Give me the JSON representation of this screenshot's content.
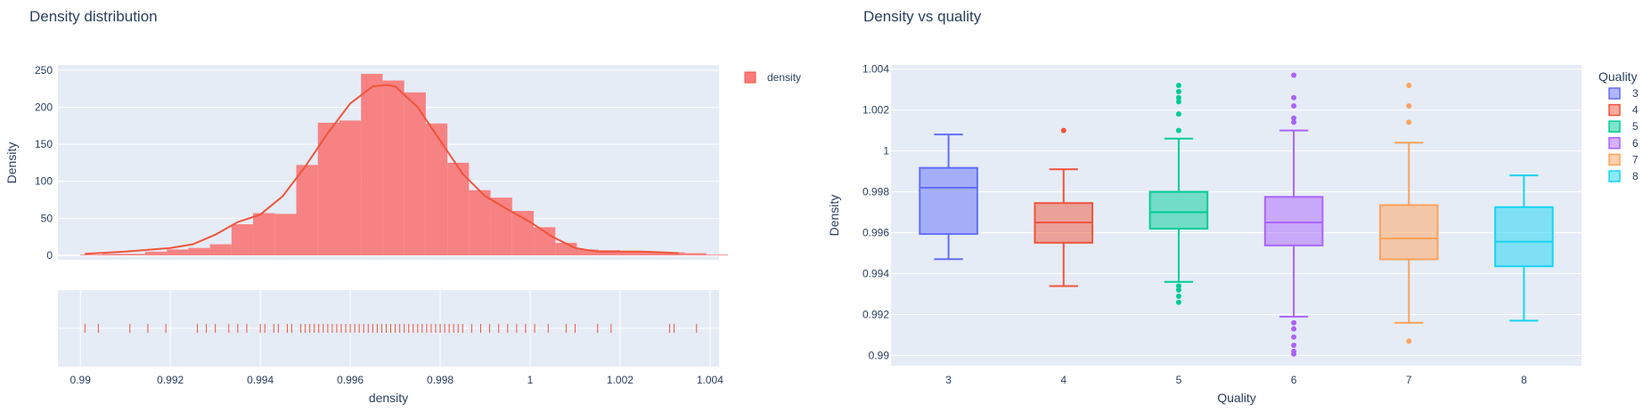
{
  "chart_data": [
    {
      "type": "bar",
      "title": "Density distribution",
      "xlabel": "density",
      "ylabel": "Density",
      "xlim": [
        0.9895,
        1.0042
      ],
      "ylim": [
        -6,
        257
      ],
      "bin_width": 0.00048,
      "bin_start": 0.99,
      "values": [
        1,
        2,
        2,
        5,
        8,
        10,
        15,
        42,
        57,
        56,
        122,
        179,
        182,
        245,
        236,
        220,
        178,
        125,
        88,
        78,
        60,
        38,
        17,
        8,
        7,
        6,
        5,
        4,
        3,
        1
      ],
      "xticks": [
        {
          "v": 0.99,
          "label": "0.99"
        },
        {
          "v": 0.992,
          "label": "0.992"
        },
        {
          "v": 0.994,
          "label": "0.994"
        },
        {
          "v": 0.996,
          "label": "0.996"
        },
        {
          "v": 0.998,
          "label": "0.998"
        },
        {
          "v": 1.0,
          "label": "1"
        },
        {
          "v": 1.002,
          "label": "1.002"
        },
        {
          "v": 1.004,
          "label": "1.004"
        }
      ],
      "yticks": [
        {
          "v": 0,
          "label": "0"
        },
        {
          "v": 50,
          "label": "50"
        },
        {
          "v": 100,
          "label": "100"
        },
        {
          "v": 150,
          "label": "150"
        },
        {
          "v": 200,
          "label": "200"
        },
        {
          "v": 250,
          "label": "250"
        }
      ],
      "kde": {
        "x": [
          0.9901,
          0.991,
          0.992,
          0.9925,
          0.993,
          0.9935,
          0.994,
          0.9945,
          0.995,
          0.9955,
          0.996,
          0.9965,
          0.9968,
          0.997,
          0.9975,
          0.998,
          0.9985,
          0.999,
          0.9995,
          1.0,
          1.0005,
          1.001,
          1.0015,
          1.002,
          1.0025,
          1.003,
          1.0033
        ],
        "y": [
          2,
          5,
          10,
          15,
          28,
          45,
          55,
          80,
          120,
          165,
          205,
          228,
          230,
          228,
          200,
          155,
          110,
          80,
          62,
          45,
          25,
          10,
          5,
          5,
          5,
          4,
          3
        ]
      },
      "rug": [
        0.9901,
        0.9904,
        0.9911,
        0.9915,
        0.9919,
        0.9926,
        0.9928,
        0.993,
        0.9933,
        0.9935,
        0.9937,
        0.994,
        0.9941,
        0.9943,
        0.9944,
        0.9946,
        0.9947,
        0.9949,
        0.995,
        0.9951,
        0.9952,
        0.9953,
        0.9954,
        0.9955,
        0.9956,
        0.9957,
        0.9958,
        0.9959,
        0.996,
        0.9961,
        0.9962,
        0.9963,
        0.9964,
        0.9965,
        0.9966,
        0.9967,
        0.9968,
        0.9969,
        0.997,
        0.9971,
        0.9972,
        0.9973,
        0.9974,
        0.9975,
        0.9976,
        0.9977,
        0.9978,
        0.9979,
        0.998,
        0.9981,
        0.9982,
        0.9983,
        0.9984,
        0.9985,
        0.9987,
        0.9989,
        0.9991,
        0.9993,
        0.9995,
        0.9997,
        0.9999,
        1.0001,
        1.0004,
        1.0008,
        1.001,
        1.0015,
        1.0018,
        1.0031,
        1.0032,
        1.0037
      ],
      "legend": [
        {
          "name": "density",
          "color": "#ef553b"
        }
      ],
      "color": "#f87c7c",
      "line_color": "#ef553b"
    },
    {
      "type": "box",
      "title": "Density vs quality",
      "xlabel": "Quality",
      "ylabel": "Density",
      "legend_title": "Quality",
      "ylim": [
        0.9895,
        1.0042
      ],
      "yticks": [
        {
          "v": 0.99,
          "label": "0.99"
        },
        {
          "v": 0.992,
          "label": "0.992"
        },
        {
          "v": 0.994,
          "label": "0.994"
        },
        {
          "v": 0.996,
          "label": "0.996"
        },
        {
          "v": 0.998,
          "label": "0.998"
        },
        {
          "v": 1.0,
          "label": "1"
        },
        {
          "v": 1.002,
          "label": "1.002"
        },
        {
          "v": 1.004,
          "label": "1.004"
        }
      ],
      "series": [
        {
          "name": "3",
          "color": "#636efa",
          "fill": "rgba(99,110,250,0.5)",
          "min": 0.99471,
          "q1": 0.99594,
          "median": 0.9982,
          "q3": 0.99917,
          "max": 1.0008,
          "outliers": []
        },
        {
          "name": "4",
          "color": "#ef553b",
          "fill": "rgba(239,85,59,0.5)",
          "min": 0.99339,
          "q1": 0.99551,
          "median": 0.9965,
          "q3": 0.99745,
          "max": 0.9991,
          "outliers": [
            1.001
          ]
        },
        {
          "name": "5",
          "color": "#00cc96",
          "fill": "rgba(0,204,150,0.5)",
          "min": 0.9936,
          "q1": 0.9962,
          "median": 0.997,
          "q3": 0.998,
          "max": 1.0006,
          "outliers": [
            0.9926,
            0.9929,
            0.9932,
            0.9934,
            1.001,
            1.0018,
            1.0024,
            1.0026,
            1.0029,
            1.0032
          ]
        },
        {
          "name": "6",
          "color": "#ab63fa",
          "fill": "rgba(171,99,250,0.5)",
          "min": 0.9919,
          "q1": 0.99538,
          "median": 0.9965,
          "q3": 0.99775,
          "max": 1.001,
          "outliers": [
            0.99007,
            0.9902,
            0.9905,
            0.9909,
            0.9913,
            0.9916,
            1.0014,
            1.0016,
            1.0022,
            1.0026,
            1.0037
          ]
        },
        {
          "name": "7",
          "color": "#ffa15a",
          "fill": "rgba(255,161,90,0.5)",
          "min": 0.9916,
          "q1": 0.9947,
          "median": 0.99572,
          "q3": 0.99735,
          "max": 1.0004,
          "outliers": [
            0.9907,
            1.0014,
            1.0022,
            1.0032
          ]
        },
        {
          "name": "8",
          "color": "#19d3f3",
          "fill": "rgba(25,211,243,0.5)",
          "min": 0.9917,
          "q1": 0.99436,
          "median": 0.99556,
          "q3": 0.99725,
          "max": 0.9988,
          "outliers": []
        }
      ]
    }
  ]
}
